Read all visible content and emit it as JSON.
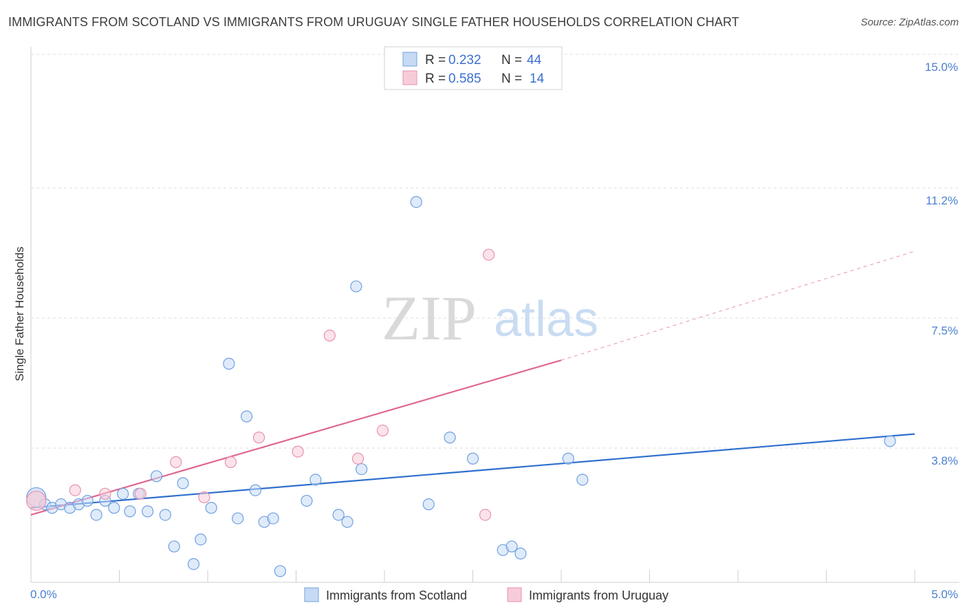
{
  "title": "IMMIGRANTS FROM SCOTLAND VS IMMIGRANTS FROM URUGUAY SINGLE FATHER HOUSEHOLDS CORRELATION CHART",
  "source": "Source: ZipAtlas.com",
  "watermark": {
    "zip": "ZIP",
    "atlas": "atlas"
  },
  "chart_data": {
    "type": "scatter",
    "title": "IMMIGRANTS FROM SCOTLAND VS IMMIGRANTS FROM URUGUAY SINGLE FATHER HOUSEHOLDS CORRELATION CHART",
    "xlabel": "",
    "ylabel": "Single Father Households",
    "xlim": [
      0,
      5.0
    ],
    "ylim": [
      0,
      15.0
    ],
    "x_tick_labels": [
      "0.0%",
      "5.0%"
    ],
    "y_ticks": [
      3.8,
      7.5,
      11.2,
      15.0
    ],
    "y_tick_labels": [
      "3.8%",
      "7.5%",
      "11.2%",
      "15.0%"
    ],
    "legend": {
      "position": "top-center",
      "entries": [
        {
          "r_label": "R =",
          "r_value": "0.232",
          "n_label": "N =",
          "n_value": "44"
        },
        {
          "r_label": "R =",
          "r_value": "0.585",
          "n_label": "N =",
          "n_value": "14"
        }
      ]
    },
    "series": [
      {
        "name": "Immigrants from Scotland",
        "color": "#6fa0e0",
        "fill": "#c6daf5",
        "line_color": "#2f6fcf",
        "trend": {
          "x0": 0.0,
          "y0": 2.1,
          "x1": 5.0,
          "y1": 4.2
        },
        "points": [
          [
            0.03,
            2.4
          ],
          [
            0.08,
            2.2
          ],
          [
            0.12,
            2.1
          ],
          [
            0.17,
            2.2
          ],
          [
            0.22,
            2.1
          ],
          [
            0.27,
            2.2
          ],
          [
            0.32,
            2.3
          ],
          [
            0.37,
            1.9
          ],
          [
            0.42,
            2.3
          ],
          [
            0.47,
            2.1
          ],
          [
            0.52,
            2.5
          ],
          [
            0.56,
            2.0
          ],
          [
            0.61,
            2.5
          ],
          [
            0.66,
            2.0
          ],
          [
            0.71,
            3.0
          ],
          [
            0.76,
            1.9
          ],
          [
            0.81,
            1.0
          ],
          [
            0.86,
            2.8
          ],
          [
            0.92,
            0.5
          ],
          [
            0.96,
            1.2
          ],
          [
            1.02,
            2.1
          ],
          [
            1.12,
            6.2
          ],
          [
            1.17,
            1.8
          ],
          [
            1.22,
            4.7
          ],
          [
            1.27,
            2.6
          ],
          [
            1.32,
            1.7
          ],
          [
            1.37,
            1.8
          ],
          [
            1.41,
            0.3
          ],
          [
            1.56,
            2.3
          ],
          [
            1.61,
            2.9
          ],
          [
            1.74,
            1.9
          ],
          [
            1.79,
            1.7
          ],
          [
            1.84,
            8.4
          ],
          [
            1.87,
            3.2
          ],
          [
            2.18,
            10.8
          ],
          [
            2.25,
            2.2
          ],
          [
            2.37,
            4.1
          ],
          [
            2.5,
            3.5
          ],
          [
            2.67,
            0.9
          ],
          [
            2.72,
            1.0
          ],
          [
            2.77,
            0.8
          ],
          [
            3.04,
            3.5
          ],
          [
            3.12,
            2.9
          ],
          [
            4.86,
            4.0
          ]
        ]
      },
      {
        "name": "Immigrants from Uruguay",
        "color": "#e891ad",
        "fill": "#f7ccd9",
        "line_color": "#e06690",
        "trend": {
          "x0": 0.0,
          "y0": 1.9,
          "x1": 3.0,
          "y1": 6.3,
          "dash_to_x": 5.0,
          "dash_to_y": 9.4
        },
        "points": [
          [
            0.03,
            2.3
          ],
          [
            0.25,
            2.6
          ],
          [
            0.42,
            2.5
          ],
          [
            0.62,
            2.5
          ],
          [
            0.82,
            3.4
          ],
          [
            0.98,
            2.4
          ],
          [
            1.13,
            3.4
          ],
          [
            1.29,
            4.1
          ],
          [
            1.51,
            3.7
          ],
          [
            1.69,
            7.0
          ],
          [
            1.85,
            3.5
          ],
          [
            1.99,
            4.3
          ],
          [
            2.57,
            1.9
          ],
          [
            2.59,
            9.3
          ]
        ]
      }
    ]
  }
}
